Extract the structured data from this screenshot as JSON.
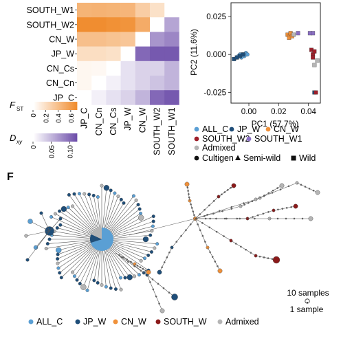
{
  "colors": {
    "ALL_C": "#5a9fd4",
    "JP_W": "#1f4e79",
    "CN_W": "#f0913a",
    "SOUTH_W": "#8b1a1a",
    "SOUTH_W1": "#8a6fc2",
    "SOUTH_W2": "#9e1f2a",
    "Admixed": "#b5b5b5"
  },
  "heatmap": {
    "rows": [
      "SOUTH_W1",
      "SOUTH_W2",
      "CN_W",
      "JP_W",
      "CN_Cs",
      "CN_Cn",
      "JP_C"
    ],
    "cols": [
      "JP_C",
      "CN_Cn",
      "CN_Cs",
      "JP_W",
      "CN_W",
      "SOUTH_W2",
      "SOUTH_W1"
    ],
    "fst": [
      [
        0.45,
        0.46,
        0.45,
        0.44,
        0.3,
        0.18
      ],
      [
        0.68,
        0.68,
        0.66,
        0.64,
        0.5
      ],
      [
        0.38,
        0.38,
        0.36,
        0.34
      ],
      [
        0.2,
        0.2,
        0.18
      ],
      [
        0.05,
        0.04
      ],
      [
        0.05
      ]
    ],
    "dxy": [
      [
        0.06
      ],
      [
        0.07,
        0.08
      ],
      [
        0.1,
        0.11,
        0.11
      ],
      [
        0.02,
        0.03,
        0.03,
        0.05
      ],
      [
        0.01,
        0.02,
        0.03,
        0.04,
        0.05
      ],
      [
        0.01,
        0.02,
        0.03,
        0.05,
        0.1,
        0.11
      ]
    ]
  },
  "legend_fst": {
    "label_main": "F",
    "label_sub": "ST",
    "ticks": [
      "0",
      "0.2",
      "0.4",
      "0.6"
    ]
  },
  "legend_dxy": {
    "label_main": "D",
    "label_sub": "xy",
    "ticks": [
      "0",
      "0.05",
      "0.10"
    ]
  },
  "chart_data": {
    "type": "scatter",
    "xlabel": "PC1 (57.7%)",
    "ylabel": "PC2 (11.6%)",
    "xticks": [
      "0.00",
      "0.02",
      "0.04"
    ],
    "yticks": [
      "0.025",
      "0.000",
      "-0.025"
    ],
    "xlim": [
      -0.012,
      0.048
    ],
    "ylim": [
      -0.032,
      0.034
    ],
    "series": [
      {
        "name": "ALL_C",
        "shape": "circle",
        "points": [
          [
            -0.008,
            -0.002
          ],
          [
            -0.007,
            -0.001
          ],
          [
            -0.006,
            0.0
          ],
          [
            -0.005,
            -0.002
          ],
          [
            -0.004,
            0.0
          ],
          [
            -0.003,
            -0.001
          ],
          [
            -0.002,
            0.001
          ],
          [
            -0.001,
            0.0
          ]
        ]
      },
      {
        "name": "JP_W",
        "shape": "square",
        "points": [
          [
            -0.01,
            -0.003
          ],
          [
            -0.008,
            -0.002
          ],
          [
            -0.006,
            -0.001
          ],
          [
            -0.004,
            0.0
          ],
          [
            0.044,
            -0.025
          ]
        ]
      },
      {
        "name": "CN_W",
        "shape": "square",
        "points": [
          [
            0.026,
            0.013
          ],
          [
            0.027,
            0.012
          ],
          [
            0.028,
            0.014
          ],
          [
            0.027,
            0.011
          ],
          [
            0.029,
            0.012
          ]
        ]
      },
      {
        "name": "SOUTH_W2",
        "shape": "square",
        "points": [
          [
            0.042,
            0.003
          ],
          [
            0.043,
            0.0
          ],
          [
            0.044,
            0.002
          ],
          [
            0.043,
            -0.002
          ],
          [
            0.045,
            -0.025
          ]
        ]
      },
      {
        "name": "SOUTH_W1",
        "shape": "square",
        "points": [
          [
            0.041,
            0.014
          ],
          [
            0.043,
            0.014
          ],
          [
            0.033,
            0.014
          ]
        ]
      },
      {
        "name": "Admixed",
        "shape": "square",
        "points": [
          [
            0.025,
            0.043
          ],
          [
            0.028,
            0.04
          ],
          [
            0.044,
            -0.007
          ],
          [
            0.046,
            -0.004
          ],
          [
            0.03,
            0.013
          ]
        ]
      }
    ]
  },
  "pca_legend": {
    "items": [
      {
        "label": "ALL_C",
        "key": "ALL_C",
        "marker": "circle"
      },
      {
        "label": "JP_W",
        "key": "JP_W",
        "marker": "circle"
      },
      {
        "label": "CN_W",
        "key": "CN_W",
        "marker": "circle"
      },
      {
        "label": "SOUTH_W2",
        "key": "SOUTH_W2",
        "marker": "circle"
      },
      {
        "label": "SOUTH_W1",
        "key": "SOUTH_W1",
        "marker": "circle"
      },
      {
        "label": "Admixed",
        "key": "Admixed",
        "marker": "circle"
      },
      {
        "label": "Cultigen",
        "key": "black",
        "marker": "circle"
      },
      {
        "label": "Semi-wild",
        "key": "black",
        "marker": "triangle"
      },
      {
        "label": "Wild",
        "key": "black",
        "marker": "square"
      }
    ]
  },
  "panel_f": {
    "label": "F",
    "size_legend": {
      "large": "10 samples",
      "small": "1 sample"
    },
    "legend": [
      {
        "label": "ALL_C",
        "key": "ALL_C"
      },
      {
        "label": "JP_W",
        "key": "JP_W"
      },
      {
        "label": "CN_W",
        "key": "CN_W"
      },
      {
        "label": "SOUTH_W",
        "key": "SOUTH_W"
      },
      {
        "label": "Admixed",
        "key": "Admixed"
      }
    ]
  }
}
